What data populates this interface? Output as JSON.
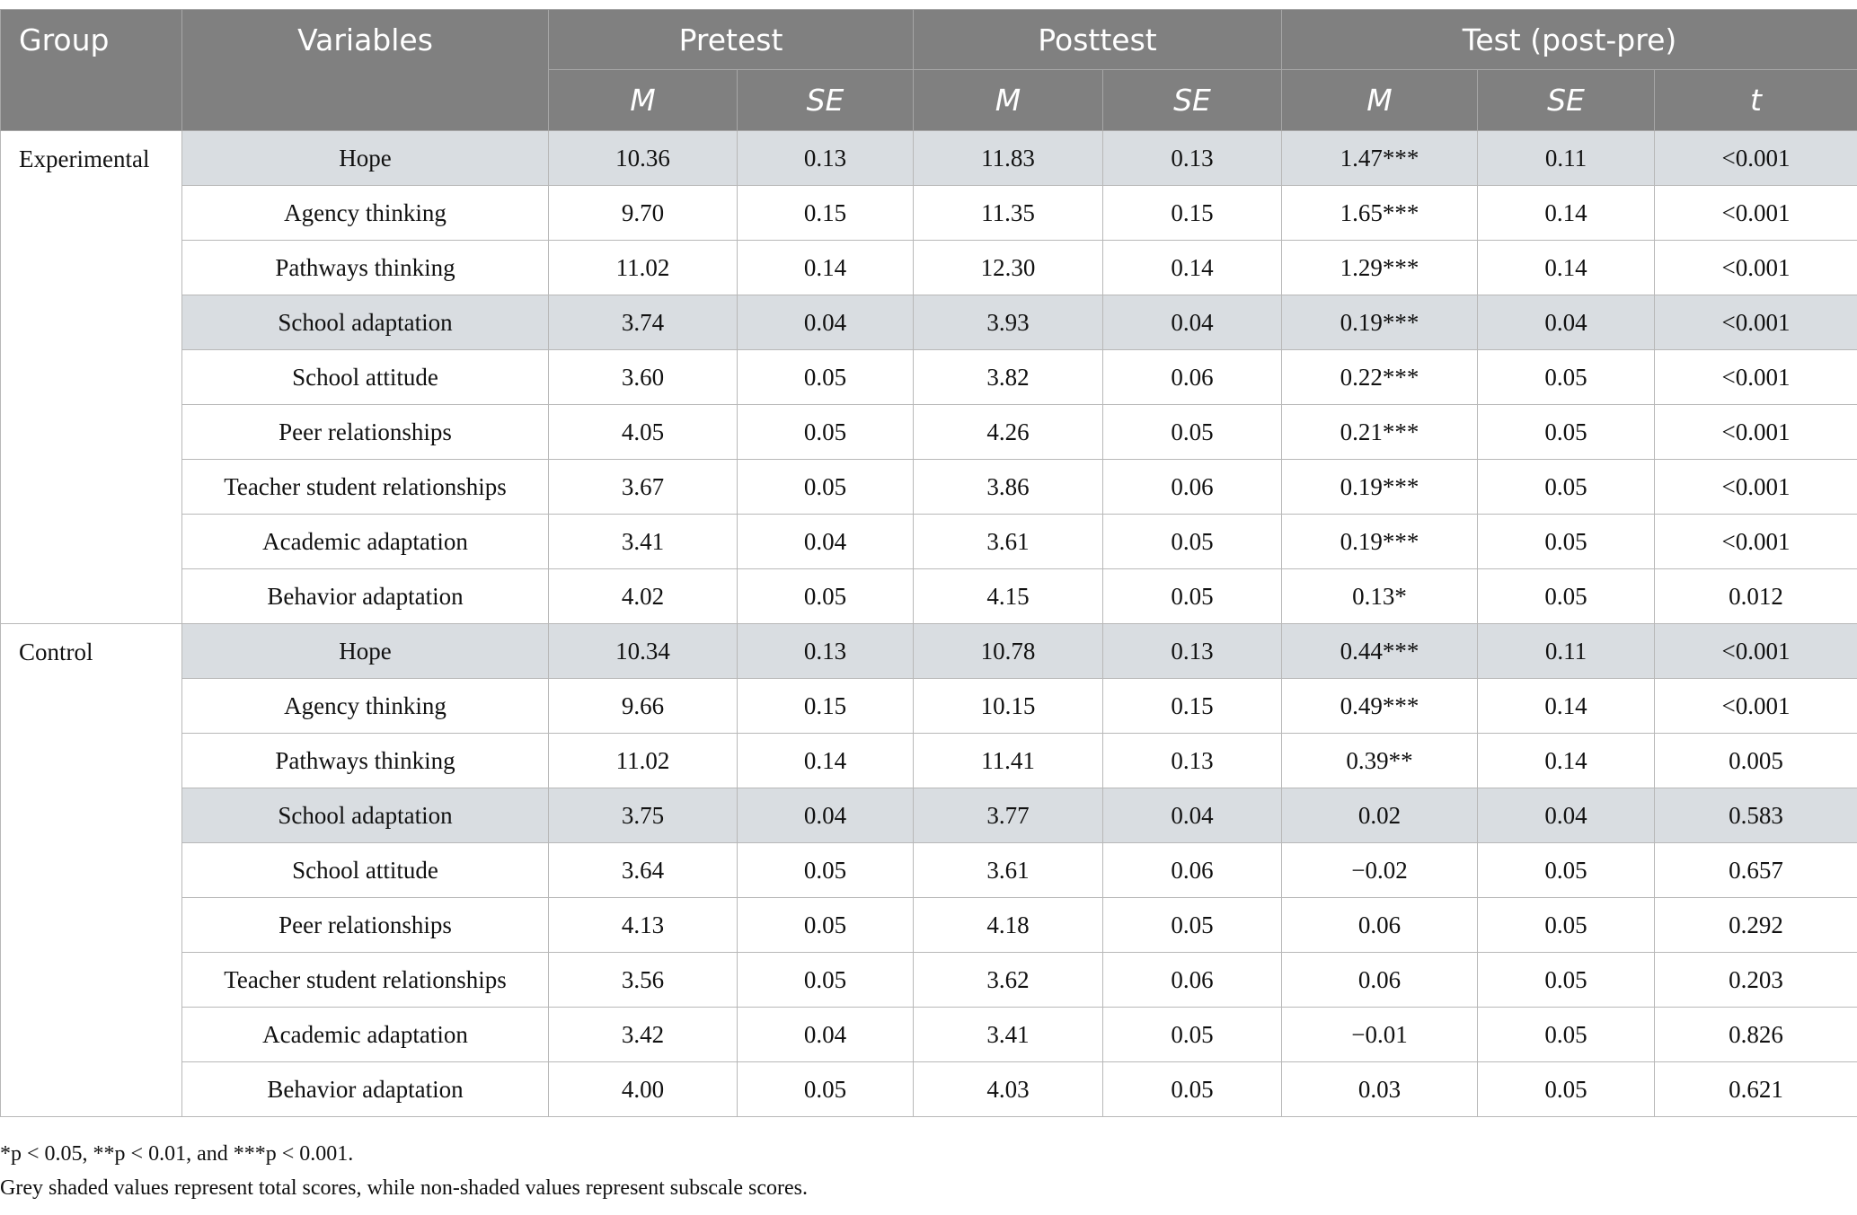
{
  "table": {
    "header": {
      "row1": [
        "Group",
        "Variables",
        "Pretest",
        "Posttest",
        "Test (post-pre)"
      ],
      "row2": [
        "M",
        "SE",
        "M",
        "SE",
        "M",
        "SE",
        "t"
      ]
    },
    "groups": [
      {
        "name": "Experimental",
        "rows": [
          {
            "variable": "Hope",
            "shaded": true,
            "values": [
              "10.36",
              "0.13",
              "11.83",
              "0.13",
              "1.47***",
              "0.11",
              "<0.001"
            ]
          },
          {
            "variable": "Agency thinking",
            "shaded": false,
            "values": [
              "9.70",
              "0.15",
              "11.35",
              "0.15",
              "1.65***",
              "0.14",
              "<0.001"
            ]
          },
          {
            "variable": "Pathways thinking",
            "shaded": false,
            "values": [
              "11.02",
              "0.14",
              "12.30",
              "0.14",
              "1.29***",
              "0.14",
              "<0.001"
            ]
          },
          {
            "variable": "School adaptation",
            "shaded": true,
            "values": [
              "3.74",
              "0.04",
              "3.93",
              "0.04",
              "0.19***",
              "0.04",
              "<0.001"
            ]
          },
          {
            "variable": "School attitude",
            "shaded": false,
            "values": [
              "3.60",
              "0.05",
              "3.82",
              "0.06",
              "0.22***",
              "0.05",
              "<0.001"
            ]
          },
          {
            "variable": "Peer relationships",
            "shaded": false,
            "values": [
              "4.05",
              "0.05",
              "4.26",
              "0.05",
              "0.21***",
              "0.05",
              "<0.001"
            ]
          },
          {
            "variable": "Teacher student relationships",
            "shaded": false,
            "values": [
              "3.67",
              "0.05",
              "3.86",
              "0.06",
              "0.19***",
              "0.05",
              "<0.001"
            ]
          },
          {
            "variable": "Academic adaptation",
            "shaded": false,
            "values": [
              "3.41",
              "0.04",
              "3.61",
              "0.05",
              "0.19***",
              "0.05",
              "<0.001"
            ]
          },
          {
            "variable": "Behavior adaptation",
            "shaded": false,
            "values": [
              "4.02",
              "0.05",
              "4.15",
              "0.05",
              "0.13*",
              "0.05",
              "0.012"
            ]
          }
        ]
      },
      {
        "name": "Control",
        "rows": [
          {
            "variable": "Hope",
            "shaded": true,
            "values": [
              "10.34",
              "0.13",
              "10.78",
              "0.13",
              "0.44***",
              "0.11",
              "<0.001"
            ]
          },
          {
            "variable": "Agency thinking",
            "shaded": false,
            "values": [
              "9.66",
              "0.15",
              "10.15",
              "0.15",
              "0.49***",
              "0.14",
              "<0.001"
            ]
          },
          {
            "variable": "Pathways thinking",
            "shaded": false,
            "values": [
              "11.02",
              "0.14",
              "11.41",
              "0.13",
              "0.39**",
              "0.14",
              "0.005"
            ]
          },
          {
            "variable": "School adaptation",
            "shaded": true,
            "values": [
              "3.75",
              "0.04",
              "3.77",
              "0.04",
              "0.02",
              "0.04",
              "0.583"
            ]
          },
          {
            "variable": "School attitude",
            "shaded": false,
            "values": [
              "3.64",
              "0.05",
              "3.61",
              "0.06",
              "−0.02",
              "0.05",
              "0.657"
            ]
          },
          {
            "variable": "Peer relationships",
            "shaded": false,
            "values": [
              "4.13",
              "0.05",
              "4.18",
              "0.05",
              "0.06",
              "0.05",
              "0.292"
            ]
          },
          {
            "variable": "Teacher student relationships",
            "shaded": false,
            "values": [
              "3.56",
              "0.05",
              "3.62",
              "0.06",
              "0.06",
              "0.05",
              "0.203"
            ]
          },
          {
            "variable": "Academic adaptation",
            "shaded": false,
            "values": [
              "3.42",
              "0.04",
              "3.41",
              "0.05",
              "−0.01",
              "0.05",
              "0.826"
            ]
          },
          {
            "variable": "Behavior adaptation",
            "shaded": false,
            "values": [
              "4.00",
              "0.05",
              "4.03",
              "0.05",
              "0.03",
              "0.05",
              "0.621"
            ]
          }
        ]
      }
    ]
  },
  "notes": [
    "*p < 0.05, **p < 0.01, and ***p < 0.001.",
    "Grey shaded values represent total scores, while non-shaded values represent subscale scores."
  ]
}
